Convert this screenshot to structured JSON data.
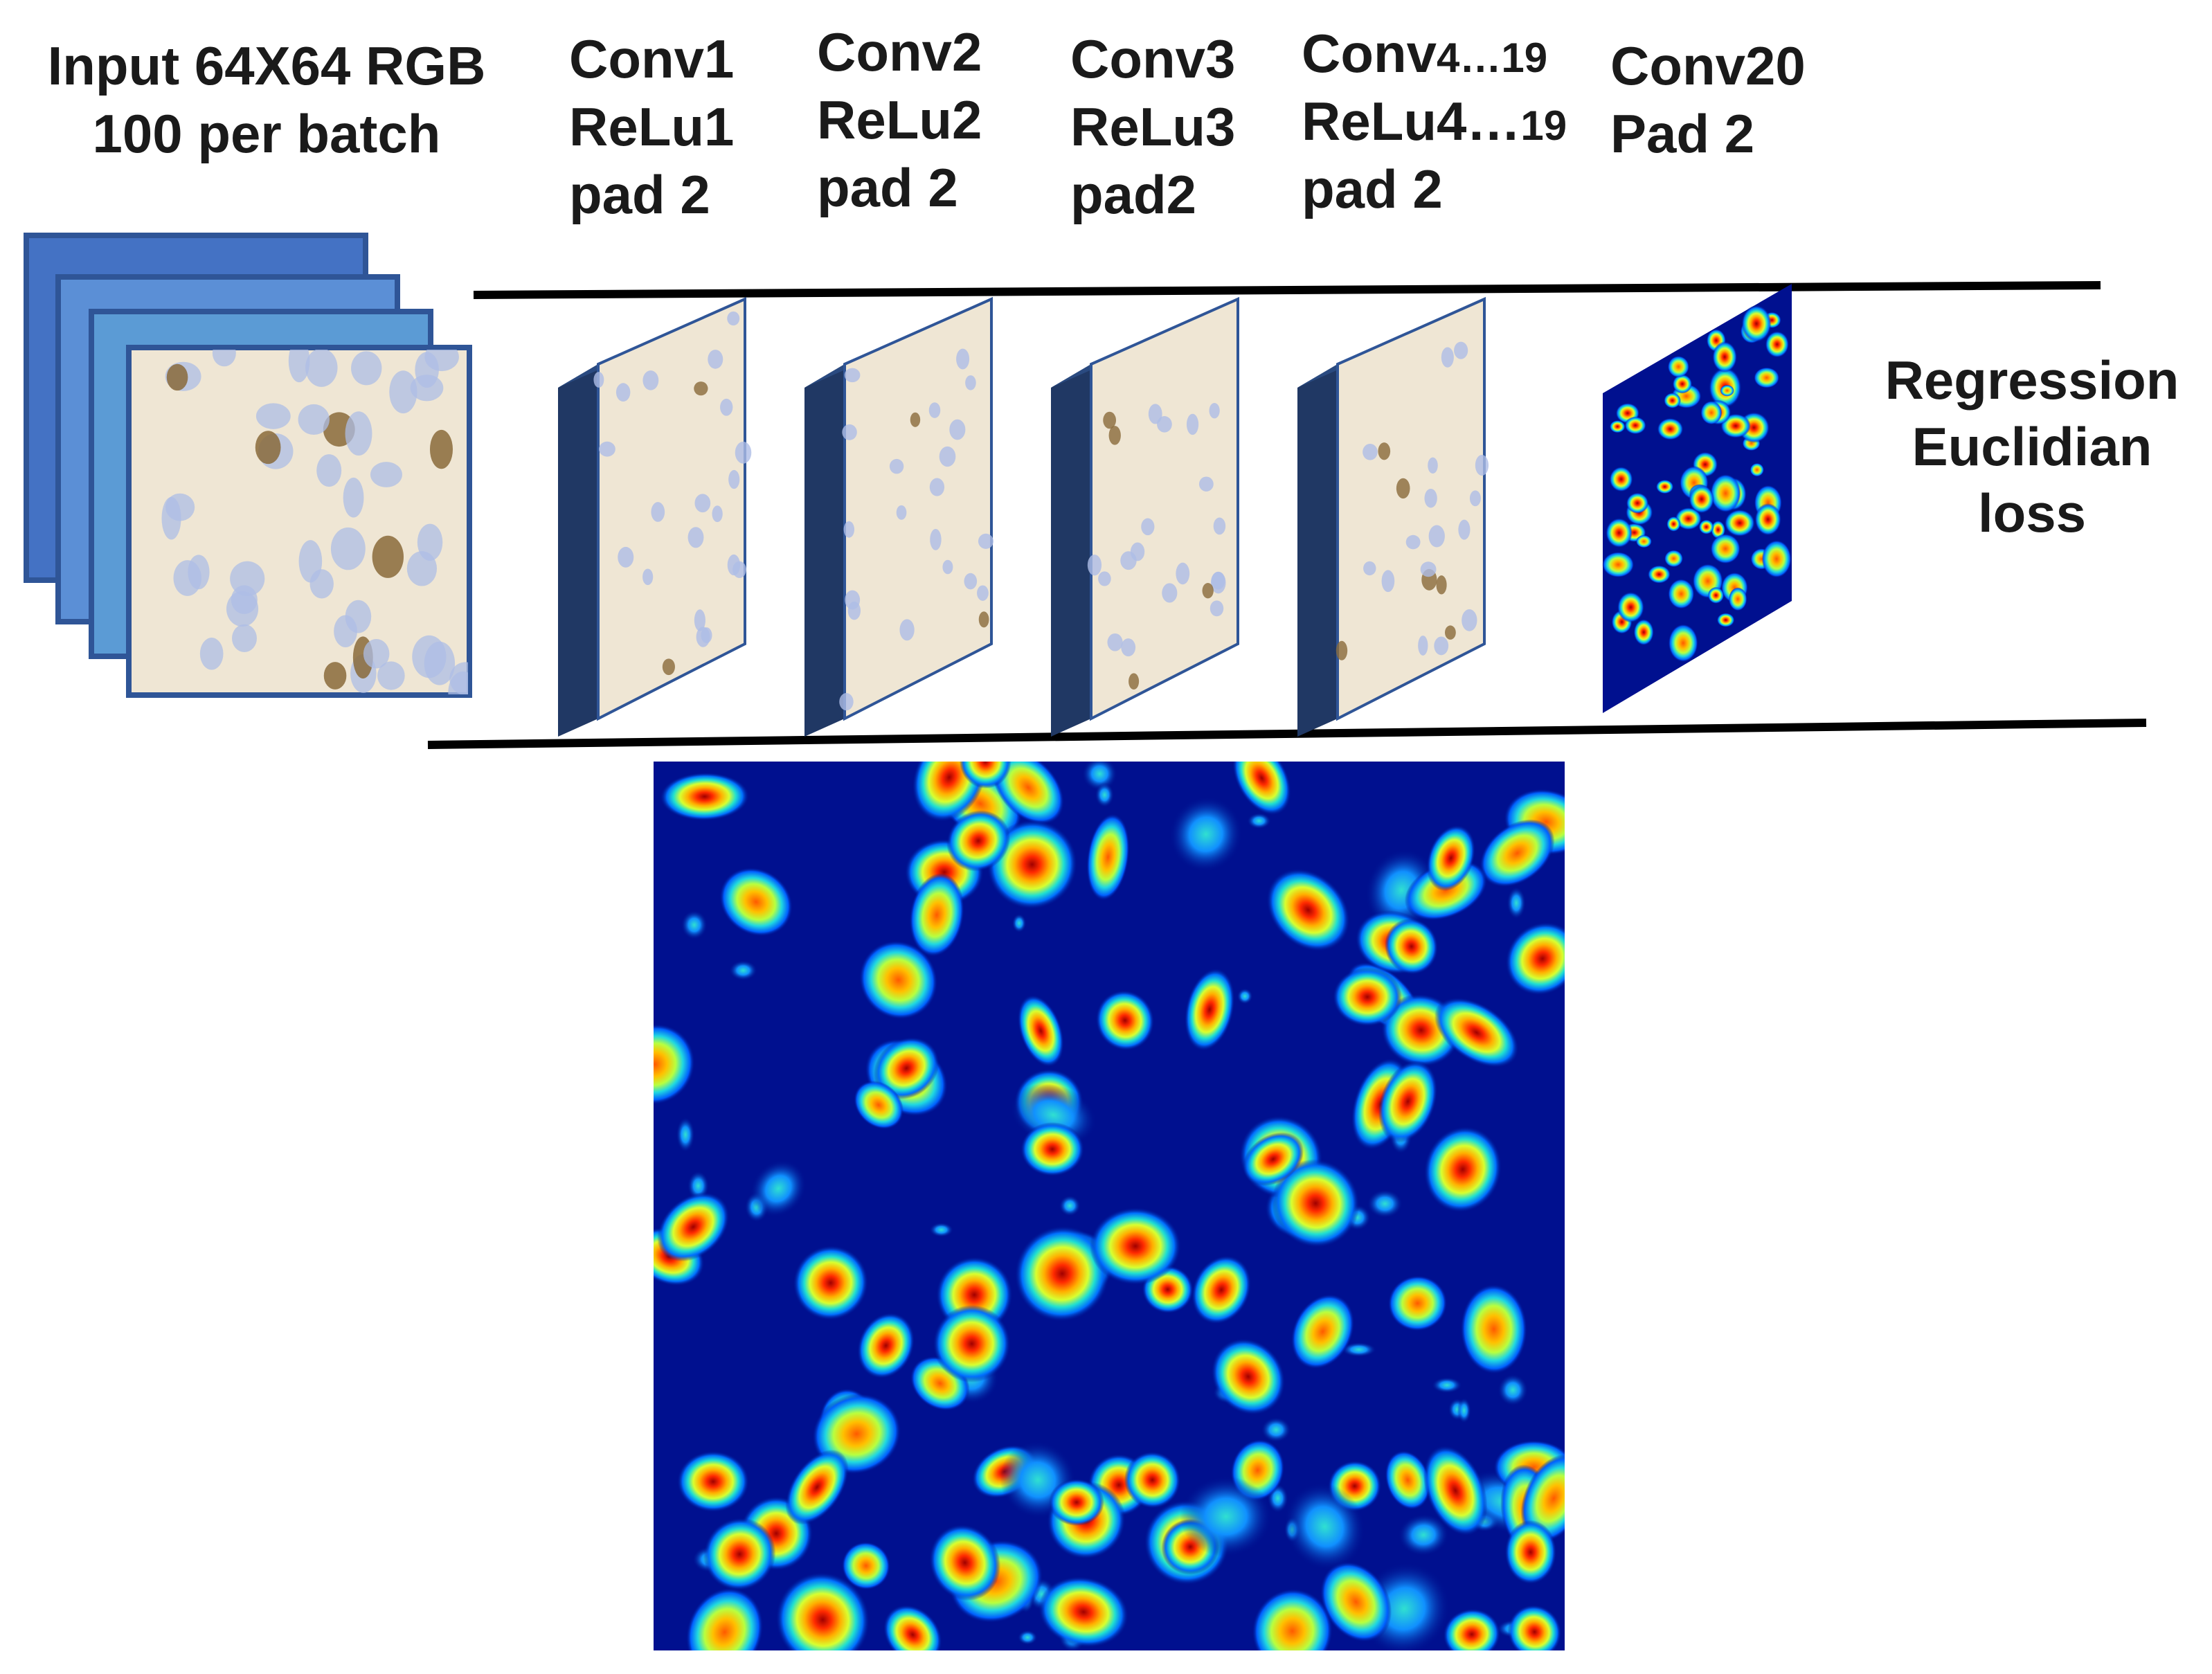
{
  "input": {
    "line1": "Input 64X64 RGB",
    "line2": "100 per batch"
  },
  "layers": [
    {
      "l1": "Conv1",
      "l1_suffix": "",
      "l2": "ReLu1",
      "l2_suffix": "",
      "l3": "pad 2"
    },
    {
      "l1": "Conv2",
      "l1_suffix": "",
      "l2": "ReLu2",
      "l2_suffix": "",
      "l3": "pad 2"
    },
    {
      "l1": "Conv3",
      "l1_suffix": "",
      "l2": "ReLu3",
      "l2_suffix": "",
      "l3": "pad2"
    },
    {
      "l1": "Conv",
      "l1_suffix": "4…19",
      "l2": "ReLu4…",
      "l2_suffix": "19",
      "l3": "pad 2"
    }
  ],
  "final_layer": {
    "l1": "Conv20",
    "l2": "Pad 2"
  },
  "loss": {
    "l1": "Regression",
    "l2": "Euclidian",
    "l3": "loss"
  },
  "colors": {
    "stack_front": "#5b9bd5",
    "stack_back": "#4472c4",
    "stack_border": "#2f5597",
    "slab_side": "#203864",
    "heat_background": "#00108f",
    "tissue_background": "#efe6d4",
    "nucleus_blue": "#a8b8e0",
    "nucleus_brown": "#8a6a3a"
  }
}
